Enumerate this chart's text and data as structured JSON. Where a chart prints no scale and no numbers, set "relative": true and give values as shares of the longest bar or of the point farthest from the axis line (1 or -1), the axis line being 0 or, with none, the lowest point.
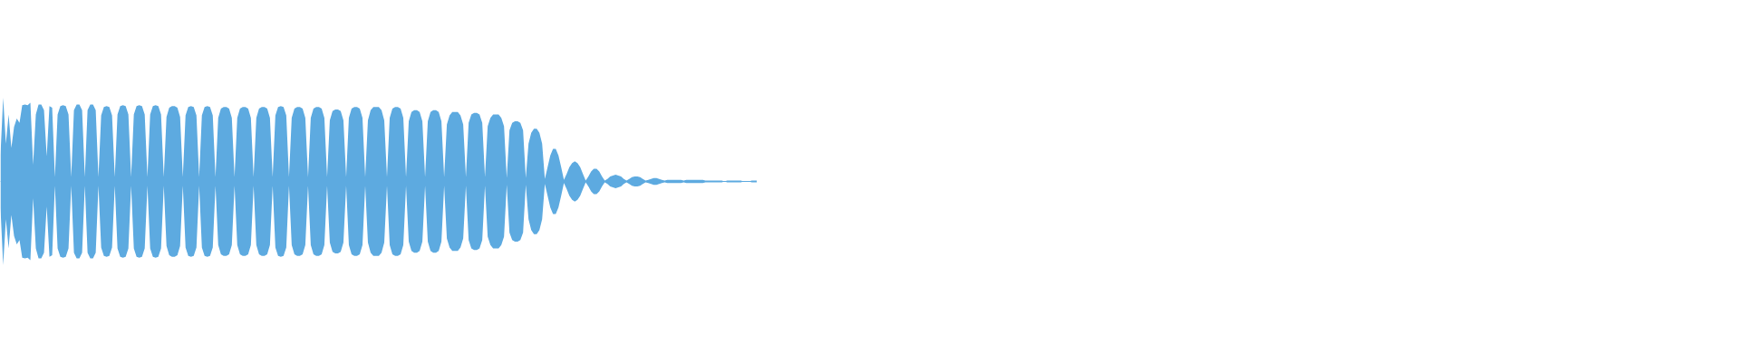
{
  "chart_data": {
    "type": "area",
    "relative": true,
    "categories": [
      null,
      null,
      null,
      null,
      null,
      null,
      null,
      null,
      null,
      null,
      null,
      null,
      null,
      null,
      null,
      null,
      null,
      null,
      null,
      null,
      null,
      null,
      null,
      null,
      null,
      null,
      null,
      null,
      null,
      null,
      null,
      null,
      null,
      null,
      null,
      null,
      null,
      null,
      null,
      null,
      null,
      null,
      null,
      null,
      null,
      null,
      null,
      null,
      null,
      null,
      null,
      null,
      null,
      null,
      null,
      null,
      null,
      null,
      null,
      null,
      null,
      null,
      null,
      null,
      null,
      null,
      null,
      null,
      null,
      null,
      null,
      null,
      null,
      null,
      null,
      null,
      null,
      null,
      null,
      null,
      null,
      null,
      null,
      null,
      null,
      null,
      null,
      null,
      null,
      null,
      null,
      null,
      null,
      null,
      null,
      null,
      null,
      null,
      null,
      null,
      null,
      null,
      null,
      null,
      null,
      null,
      null,
      null,
      null,
      null,
      null,
      null,
      null,
      null,
      null,
      null,
      null,
      null,
      null,
      null,
      null,
      null,
      null,
      null,
      null,
      null,
      null,
      null,
      null,
      null,
      null,
      null,
      null,
      null,
      null,
      null,
      null,
      null,
      null,
      null,
      null,
      null,
      null,
      null,
      null,
      null,
      null,
      null,
      null,
      null,
      null,
      null,
      null,
      null,
      null,
      null,
      null,
      null,
      null,
      null,
      null,
      null,
      null,
      null,
      null,
      null,
      null,
      null,
      null,
      null,
      null,
      null,
      null,
      null,
      null,
      null,
      null,
      null,
      null,
      null,
      null,
      null,
      null,
      null,
      null,
      null,
      null,
      null,
      null,
      null,
      null,
      null,
      null,
      null,
      null,
      null,
      null,
      null,
      null,
      null,
      null,
      null,
      null,
      null,
      null,
      null,
      null,
      null,
      null,
      null,
      null,
      null,
      null,
      null,
      null,
      null,
      null,
      null,
      null,
      null,
      null,
      null,
      null,
      null,
      null,
      null,
      null,
      null,
      null,
      null,
      null,
      null,
      null,
      null,
      null,
      null,
      null,
      null,
      null,
      null,
      null,
      null,
      null,
      null,
      null,
      null,
      null,
      null,
      null,
      null,
      null,
      null,
      null,
      null,
      null,
      null,
      null,
      null,
      null,
      null,
      null,
      null,
      null,
      null,
      null,
      null,
      null,
      null,
      null,
      null,
      null,
      null,
      null,
      null,
      null,
      null,
      null,
      null,
      null
    ],
    "ref_lines": [
      {
        "axis": "y",
        "value": 0,
        "color": "#5daae0"
      }
    ],
    "series": [
      {
        "color": "#5daae0",
        "values": [
          0.32,
          1.0,
          0.45,
          0.8,
          0.4,
          0.65,
          0.75,
          0.7,
          0.91,
          0.92,
          0.91,
          0.94,
          0.2,
          0.8,
          0.92,
          0.92,
          0.85,
          0.3,
          0.9,
          0.88,
          0.05,
          0.8,
          0.9,
          0.91,
          0.9,
          0.8,
          0.05,
          0.85,
          0.92,
          0.92,
          0.85,
          0.05,
          0.85,
          0.92,
          0.92,
          0.85,
          0.05,
          0.79,
          0.89,
          0.9,
          0.89,
          0.79,
          0.05,
          0.8,
          0.9,
          0.91,
          0.9,
          0.8,
          0.05,
          0.8,
          0.9,
          0.91,
          0.9,
          0.8,
          0.05,
          0.8,
          0.9,
          0.91,
          0.9,
          0.8,
          0.05,
          0.77,
          0.88,
          0.9,
          0.9,
          0.88,
          0.77,
          0.05,
          0.79,
          0.89,
          0.9,
          0.89,
          0.79,
          0.05,
          0.79,
          0.89,
          0.9,
          0.89,
          0.79,
          0.05,
          0.76,
          0.87,
          0.89,
          0.89,
          0.87,
          0.76,
          0.05,
          0.76,
          0.87,
          0.89,
          0.89,
          0.87,
          0.76,
          0.05,
          0.76,
          0.87,
          0.89,
          0.89,
          0.87,
          0.76,
          0.05,
          0.79,
          0.89,
          0.9,
          0.89,
          0.79,
          0.05,
          0.76,
          0.87,
          0.89,
          0.89,
          0.87,
          0.76,
          0.05,
          0.76,
          0.87,
          0.89,
          0.89,
          0.87,
          0.76,
          0.05,
          0.73,
          0.84,
          0.86,
          0.86,
          0.84,
          0.73,
          0.05,
          0.76,
          0.87,
          0.89,
          0.89,
          0.87,
          0.76,
          0.05,
          0.73,
          0.85,
          0.89,
          0.89,
          0.89,
          0.85,
          0.73,
          0.05,
          0.76,
          0.87,
          0.89,
          0.89,
          0.87,
          0.76,
          0.05,
          0.72,
          0.83,
          0.85,
          0.85,
          0.83,
          0.72,
          0.05,
          0.72,
          0.83,
          0.85,
          0.85,
          0.83,
          0.72,
          0.05,
          0.68,
          0.79,
          0.83,
          0.83,
          0.83,
          0.79,
          0.68,
          0.05,
          0.7,
          0.8,
          0.82,
          0.82,
          0.8,
          0.7,
          0.05,
          0.66,
          0.76,
          0.8,
          0.8,
          0.8,
          0.76,
          0.66,
          0.04,
          0.61,
          0.7,
          0.72,
          0.72,
          0.7,
          0.61,
          0.04,
          0.45,
          0.58,
          0.63,
          0.63,
          0.58,
          0.45,
          0.03,
          0.17,
          0.31,
          0.39,
          0.39,
          0.31,
          0.17,
          0.02,
          0.09,
          0.17,
          0.22,
          0.24,
          0.22,
          0.17,
          0.09,
          0.01,
          0.06,
          0.12,
          0.15,
          0.15,
          0.12,
          0.06,
          0.01,
          0.03,
          0.06,
          0.07,
          0.08,
          0.07,
          0.06,
          0.03,
          0.01,
          0.03,
          0.05,
          0.06,
          0.06,
          0.05,
          0.03,
          0.01,
          0.02,
          0.03,
          0.04,
          0.04,
          0.03,
          0.02,
          0.01,
          0.02,
          0.02,
          0.02,
          0.02,
          0.02,
          0.02,
          0.01,
          0.02,
          0.02,
          0.02,
          0.02,
          0.02,
          0.02,
          0.02,
          0.01,
          0.01,
          0.01,
          0.01,
          0.01,
          0.01,
          0.01,
          0,
          0.01,
          0.01,
          0.01,
          0.01,
          0.01,
          0.01,
          0,
          0,
          0,
          0.01,
          0.01,
          0.01
        ]
      },
      {
        "color": "#5daae0",
        "values": [
          -0.32,
          -1.0,
          -0.45,
          -0.8,
          -0.4,
          -0.65,
          -0.75,
          -0.7,
          -0.91,
          -0.92,
          -0.91,
          -0.94,
          -0.2,
          -0.8,
          -0.92,
          -0.92,
          -0.85,
          -0.3,
          -0.9,
          -0.88,
          -0.05,
          -0.8,
          -0.9,
          -0.91,
          -0.9,
          -0.8,
          -0.05,
          -0.85,
          -0.92,
          -0.92,
          -0.85,
          -0.05,
          -0.85,
          -0.92,
          -0.92,
          -0.85,
          -0.05,
          -0.79,
          -0.89,
          -0.9,
          -0.89,
          -0.79,
          -0.05,
          -0.8,
          -0.9,
          -0.91,
          -0.9,
          -0.8,
          -0.05,
          -0.8,
          -0.9,
          -0.91,
          -0.9,
          -0.8,
          -0.05,
          -0.8,
          -0.9,
          -0.91,
          -0.9,
          -0.8,
          -0.05,
          -0.77,
          -0.88,
          -0.9,
          -0.9,
          -0.88,
          -0.77,
          -0.05,
          -0.79,
          -0.89,
          -0.9,
          -0.89,
          -0.79,
          -0.05,
          -0.79,
          -0.89,
          -0.9,
          -0.89,
          -0.79,
          -0.05,
          -0.76,
          -0.87,
          -0.89,
          -0.89,
          -0.87,
          -0.76,
          -0.05,
          -0.76,
          -0.87,
          -0.89,
          -0.89,
          -0.87,
          -0.76,
          -0.05,
          -0.76,
          -0.87,
          -0.89,
          -0.89,
          -0.87,
          -0.76,
          -0.05,
          -0.79,
          -0.89,
          -0.9,
          -0.89,
          -0.79,
          -0.05,
          -0.76,
          -0.87,
          -0.89,
          -0.89,
          -0.87,
          -0.76,
          -0.05,
          -0.76,
          -0.87,
          -0.89,
          -0.89,
          -0.87,
          -0.76,
          -0.05,
          -0.73,
          -0.84,
          -0.86,
          -0.86,
          -0.84,
          -0.73,
          -0.05,
          -0.76,
          -0.87,
          -0.89,
          -0.89,
          -0.87,
          -0.76,
          -0.05,
          -0.73,
          -0.85,
          -0.89,
          -0.89,
          -0.89,
          -0.85,
          -0.73,
          -0.05,
          -0.76,
          -0.87,
          -0.89,
          -0.89,
          -0.87,
          -0.76,
          -0.05,
          -0.72,
          -0.83,
          -0.85,
          -0.85,
          -0.83,
          -0.72,
          -0.05,
          -0.72,
          -0.83,
          -0.85,
          -0.85,
          -0.83,
          -0.72,
          -0.05,
          -0.68,
          -0.79,
          -0.83,
          -0.83,
          -0.83,
          -0.79,
          -0.68,
          -0.05,
          -0.7,
          -0.8,
          -0.82,
          -0.82,
          -0.8,
          -0.7,
          -0.05,
          -0.66,
          -0.76,
          -0.8,
          -0.8,
          -0.8,
          -0.76,
          -0.66,
          -0.04,
          -0.61,
          -0.7,
          -0.72,
          -0.72,
          -0.7,
          -0.61,
          -0.04,
          -0.45,
          -0.58,
          -0.63,
          -0.63,
          -0.58,
          -0.45,
          -0.03,
          -0.17,
          -0.31,
          -0.39,
          -0.39,
          -0.31,
          -0.17,
          -0.02,
          -0.09,
          -0.17,
          -0.22,
          -0.24,
          -0.22,
          -0.17,
          -0.09,
          -0.01,
          -0.06,
          -0.12,
          -0.15,
          -0.15,
          -0.12,
          -0.06,
          -0.01,
          -0.03,
          -0.06,
          -0.07,
          -0.08,
          -0.07,
          -0.06,
          -0.03,
          -0.01,
          -0.03,
          -0.05,
          -0.06,
          -0.06,
          -0.05,
          -0.03,
          -0.01,
          -0.02,
          -0.03,
          -0.04,
          -0.04,
          -0.03,
          -0.02,
          -0.01,
          -0.02,
          -0.02,
          -0.02,
          -0.02,
          -0.02,
          -0.02,
          -0.01,
          -0.02,
          -0.02,
          -0.02,
          -0.02,
          -0.02,
          -0.02,
          -0.02,
          -0.01,
          -0.01,
          -0.01,
          -0.01,
          -0.01,
          -0.01,
          -0.01,
          0,
          -0.01,
          -0.01,
          -0.01,
          -0.01,
          -0.01,
          -0.01,
          0,
          0,
          0,
          -0.01,
          -0.01,
          -0.01
        ]
      }
    ]
  }
}
